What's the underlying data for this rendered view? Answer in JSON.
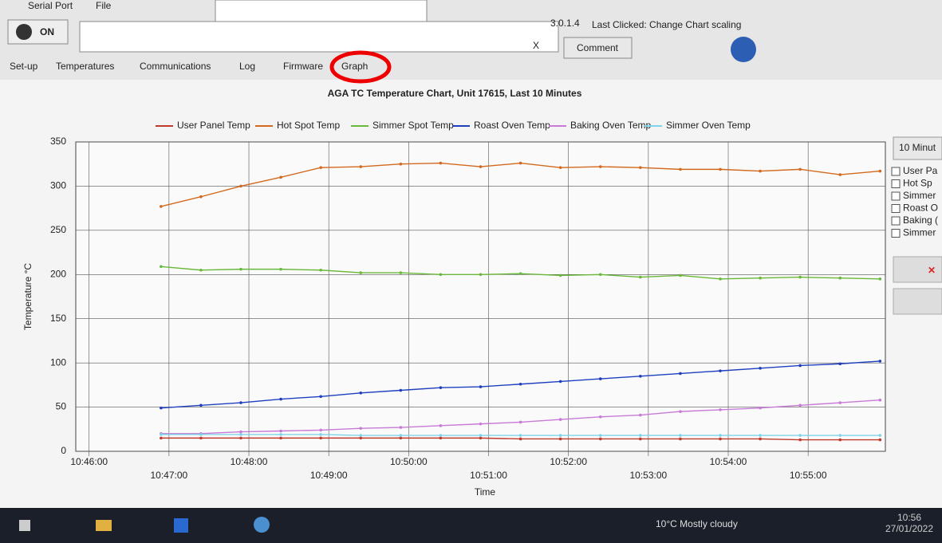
{
  "window": {
    "menu": [
      "Serial Port",
      "File"
    ],
    "power_label": "ON",
    "clear_button": "X",
    "comment_button": "Comment",
    "version": "3.0.1.4",
    "status": "Last Clicked: Change Chart scaling",
    "tabs": [
      "Set-up",
      "Temperatures",
      "Communications",
      "Log",
      "Firmware",
      "Graph"
    ]
  },
  "chart_data": {
    "type": "line",
    "title": "AGA TC Temperature Chart, Unit 17615, Last 10 Minutes",
    "x_label": "Time",
    "y_label": "Temperature °C",
    "x": [
      "10:46:54",
      "10:47:24",
      "10:47:54",
      "10:48:24",
      "10:48:54",
      "10:49:24",
      "10:49:54",
      "10:50:24",
      "10:50:54",
      "10:51:24",
      "10:51:54",
      "10:52:24",
      "10:52:54",
      "10:53:24",
      "10:53:54",
      "10:54:24",
      "10:54:54",
      "10:55:24",
      "10:55:54"
    ],
    "xlim": [
      "10:45:50",
      "10:55:58"
    ],
    "xticks": [
      "10:46:00",
      "10:47:00",
      "10:48:00",
      "10:49:00",
      "10:50:00",
      "10:51:00",
      "10:52:00",
      "10:53:00",
      "10:54:00",
      "10:55:00"
    ],
    "ylim": [
      0,
      350
    ],
    "yticks": [
      0,
      50,
      100,
      150,
      200,
      250,
      300,
      350
    ],
    "grid": true,
    "series": [
      {
        "name": "User Panel Temp",
        "color": "#c0392b",
        "values": [
          15,
          15,
          15,
          15,
          15,
          15,
          15,
          15,
          15,
          14,
          14,
          14,
          14,
          14,
          14,
          14,
          13,
          13,
          13
        ]
      },
      {
        "name": "Hot Spot Temp",
        "color": "#d2691e",
        "values": [
          277,
          288,
          300,
          310,
          321,
          322,
          325,
          326,
          322,
          326,
          321,
          322,
          321,
          319,
          319,
          317,
          319,
          313,
          317
        ]
      },
      {
        "name": "Simmer Spot Temp",
        "color": "#6ab83a",
        "values": [
          209,
          205,
          206,
          206,
          205,
          202,
          202,
          200,
          200,
          201,
          199,
          200,
          197,
          199,
          195,
          196,
          197,
          196,
          195
        ]
      },
      {
        "name": "Roast Oven Temp",
        "color": "#1f3fbf",
        "values": [
          49,
          52,
          55,
          59,
          62,
          66,
          69,
          72,
          73,
          76,
          79,
          82,
          85,
          88,
          91,
          94,
          97,
          99,
          102
        ]
      },
      {
        "name": "Baking Oven Temp",
        "color": "#c77ad6",
        "values": [
          20,
          20,
          22,
          23,
          24,
          26,
          27,
          29,
          31,
          33,
          36,
          39,
          41,
          45,
          47,
          49,
          52,
          55,
          58
        ]
      },
      {
        "name": "Simmer Oven Temp",
        "color": "#7fd3e8",
        "values": [
          19,
          19,
          19,
          19,
          19,
          18,
          18,
          18,
          18,
          18,
          18,
          18,
          18,
          18,
          18,
          18,
          18,
          18,
          18
        ]
      }
    ]
  },
  "side_panel": {
    "range": "10 Minut",
    "checks": [
      "User Pa",
      "Hot Sp",
      "Simmer",
      "Roast O",
      "Baking (",
      "Simmer"
    ]
  },
  "taskbar": {
    "weather": "10°C Mostly cloudy",
    "time": "10:56",
    "date": "27/01/2022"
  }
}
